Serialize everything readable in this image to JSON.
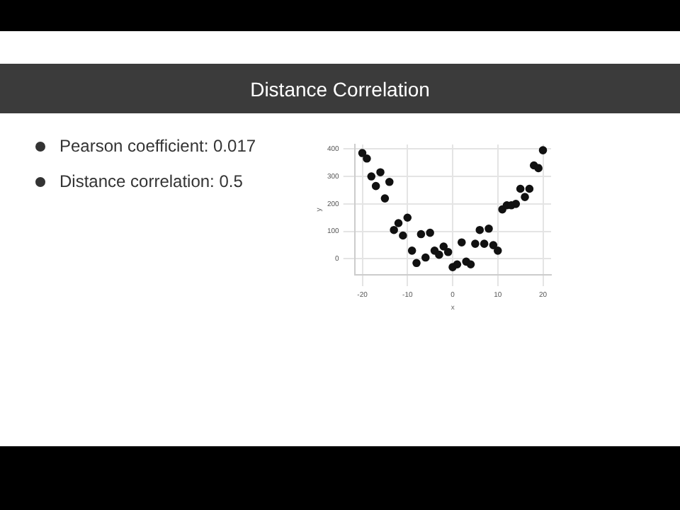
{
  "chart_data": {
    "type": "scatter",
    "title": "Distance Correlation",
    "annotations": [
      "Pearson coefficient: 0.017",
      "Distance correlation: 0.5"
    ],
    "xlabel": "x",
    "ylabel": "y",
    "x": [
      -20,
      -19,
      -18,
      -17,
      -16,
      -15,
      -14,
      -13,
      -12,
      -11,
      -10,
      -9,
      -8,
      -7,
      -6,
      -5,
      -4,
      -3,
      -2,
      -1,
      0,
      1,
      2,
      3,
      4,
      5,
      6,
      7,
      8,
      9,
      10,
      11,
      12,
      13,
      14,
      15,
      16,
      17,
      18,
      19,
      20
    ],
    "values": [
      385,
      365,
      300,
      265,
      315,
      220,
      280,
      105,
      130,
      85,
      150,
      30,
      -15,
      90,
      5,
      95,
      30,
      15,
      45,
      25,
      -30,
      -20,
      60,
      -10,
      -20,
      55,
      105,
      55,
      110,
      50,
      30,
      180,
      195,
      195,
      200,
      255,
      225,
      255,
      340,
      330,
      395
    ],
    "color": "#111111",
    "marker": "circle",
    "grid": true,
    "xlim": [
      -21.7,
      21.8
    ],
    "ylim": [
      -58,
      416
    ],
    "xticks": [
      -20,
      -10,
      0,
      10,
      20
    ],
    "yticks": [
      0,
      100,
      200,
      300,
      400
    ]
  }
}
